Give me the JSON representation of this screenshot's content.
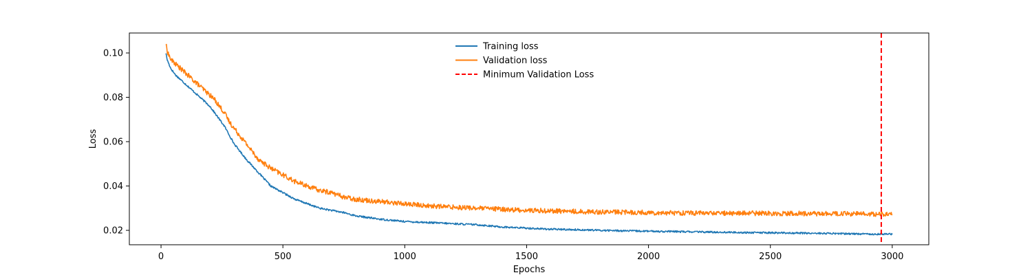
{
  "chart_data": {
    "type": "line",
    "title": "",
    "xlabel": "Epochs",
    "ylabel": "Loss",
    "xlim": [
      -130,
      3150
    ],
    "ylim": [
      0.0135,
      0.109
    ],
    "xticks": [
      0,
      500,
      1000,
      1500,
      2000,
      2500,
      3000
    ],
    "yticks": [
      0.02,
      0.04,
      0.06,
      0.08,
      0.1
    ],
    "xtick_labels": [
      "0",
      "500",
      "1000",
      "1500",
      "2000",
      "2500",
      "3000"
    ],
    "ytick_labels": [
      "0.02",
      "0.04",
      "0.06",
      "0.08",
      "0.10"
    ],
    "grid": false,
    "legend_position": "top-center",
    "series": [
      {
        "name": "Training loss",
        "color": "#1f77b4",
        "noise": 0.0004,
        "x": [
          20,
          25,
          40,
          60,
          80,
          100,
          120,
          140,
          160,
          180,
          200,
          220,
          240,
          260,
          280,
          300,
          350,
          400,
          450,
          500,
          550,
          600,
          650,
          700,
          750,
          800,
          900,
          1000,
          1100,
          1200,
          1300,
          1400,
          1500,
          1600,
          1700,
          1800,
          1900,
          2000,
          2200,
          2400,
          2600,
          2800,
          2950,
          3000
        ],
        "y": [
          0.1,
          0.097,
          0.093,
          0.09,
          0.088,
          0.086,
          0.084,
          0.082,
          0.08,
          0.078,
          0.076,
          0.073,
          0.07,
          0.067,
          0.063,
          0.059,
          0.052,
          0.046,
          0.04,
          0.037,
          0.034,
          0.032,
          0.03,
          0.029,
          0.028,
          0.0265,
          0.025,
          0.024,
          0.0235,
          0.023,
          0.0225,
          0.0215,
          0.021,
          0.0205,
          0.0203,
          0.02,
          0.0198,
          0.0196,
          0.0193,
          0.019,
          0.0188,
          0.0185,
          0.0183,
          0.0183
        ]
      },
      {
        "name": "Validation loss",
        "color": "#ff7f0e",
        "noise": 0.0011,
        "x": [
          20,
          25,
          40,
          60,
          80,
          100,
          120,
          140,
          160,
          180,
          200,
          220,
          240,
          260,
          280,
          300,
          350,
          400,
          450,
          500,
          550,
          600,
          650,
          700,
          750,
          800,
          900,
          1000,
          1100,
          1200,
          1300,
          1400,
          1500,
          1600,
          1700,
          1800,
          1900,
          2000,
          2200,
          2400,
          2600,
          2800,
          2950,
          3000
        ],
        "y": [
          0.104,
          0.101,
          0.097,
          0.095,
          0.093,
          0.091,
          0.089,
          0.087,
          0.085,
          0.083,
          0.081,
          0.079,
          0.076,
          0.073,
          0.069,
          0.066,
          0.059,
          0.052,
          0.048,
          0.045,
          0.042,
          0.04,
          0.038,
          0.037,
          0.035,
          0.034,
          0.033,
          0.032,
          0.031,
          0.0305,
          0.03,
          0.0295,
          0.029,
          0.0288,
          0.0285,
          0.0283,
          0.0282,
          0.028,
          0.0278,
          0.0277,
          0.0276,
          0.0275,
          0.0273,
          0.027
        ]
      }
    ],
    "reference_lines": [
      {
        "name": "Minimum Validation Loss",
        "orientation": "vertical",
        "x": 2955,
        "color": "#ff0000",
        "style": "dashed"
      }
    ]
  }
}
